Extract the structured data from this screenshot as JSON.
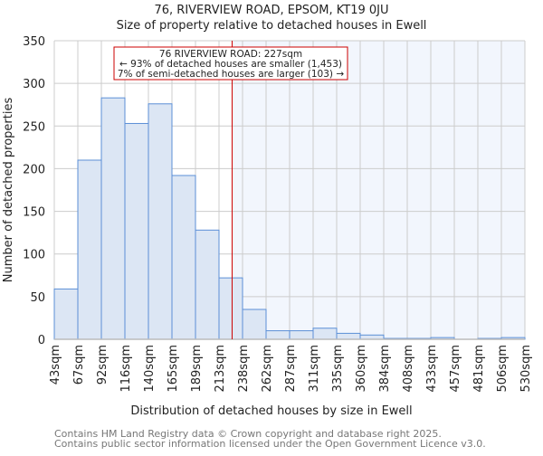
{
  "chart_data": {
    "type": "bar",
    "title": "76, RIVERVIEW ROAD, EPSOM, KT19 0JU",
    "subtitle": "Size of property relative to detached houses in Ewell",
    "xlabel": "Distribution of detached houses by size in Ewell",
    "ylabel": "Number of detached properties",
    "ylim": [
      0,
      350
    ],
    "yticks": [
      0,
      50,
      100,
      150,
      200,
      250,
      300,
      350
    ],
    "bin_edges": [
      43,
      67,
      92,
      116,
      140,
      165,
      189,
      213,
      238,
      262,
      287,
      311,
      335,
      360,
      384,
      408,
      433,
      457,
      481,
      506,
      530
    ],
    "xtick_labels": [
      "43sqm",
      "67sqm",
      "92sqm",
      "116sqm",
      "140sqm",
      "165sqm",
      "189sqm",
      "213sqm",
      "238sqm",
      "262sqm",
      "287sqm",
      "311sqm",
      "335sqm",
      "360sqm",
      "384sqm",
      "408sqm",
      "433sqm",
      "457sqm",
      "481sqm",
      "506sqm",
      "530sqm"
    ],
    "values": [
      59,
      210,
      283,
      253,
      276,
      192,
      128,
      72,
      35,
      10,
      10,
      13,
      7,
      5,
      1,
      1,
      2,
      0,
      1,
      2
    ],
    "marker_value": 227,
    "annotation": [
      "76 RIVERVIEW ROAD: 227sqm",
      "← 93% of detached houses are smaller (1,453)",
      "7% of semi-detached houses are larger (103) →"
    ],
    "colors": {
      "bar": "#dce6f4",
      "bar_edge": "#5b8fd6",
      "marker": "#cc0000",
      "highlight": "#f2f6fd",
      "grid": "#cccccc"
    }
  },
  "footer": [
    "Contains HM Land Registry data © Crown copyright and database right 2025.",
    "Contains public sector information licensed under the Open Government Licence v3.0."
  ]
}
